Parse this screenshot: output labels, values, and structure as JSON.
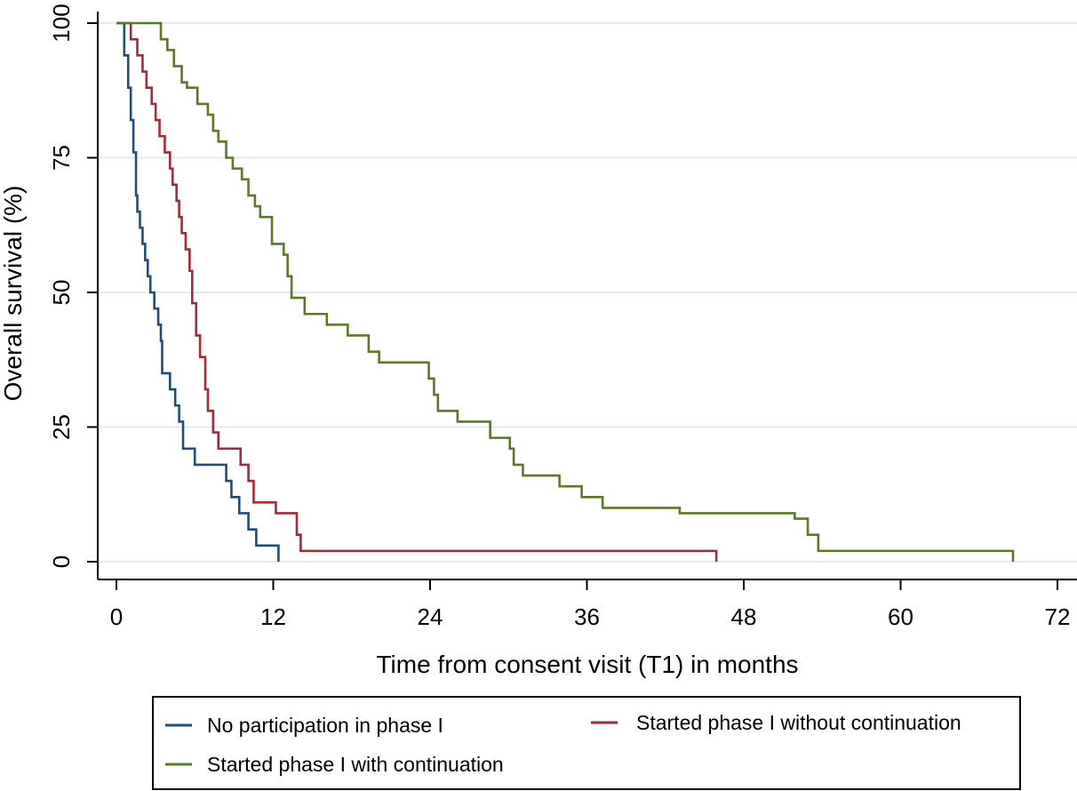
{
  "chart_data": {
    "type": "line",
    "step": true,
    "xlabel": "Time from consent visit (T1) in months",
    "ylabel": "Overall survival (%)",
    "xlim": [
      0,
      72
    ],
    "ylim": [
      0,
      100
    ],
    "xticks": [
      0,
      12,
      24,
      36,
      48,
      60,
      72
    ],
    "yticks": [
      0,
      25,
      50,
      75,
      100
    ],
    "grid": "horizontal",
    "legend_position": "bottom",
    "series": [
      {
        "name": "No participation in phase I",
        "color": "#1f4e79",
        "x": [
          0,
          0.6,
          0.9,
          1.1,
          1.3,
          1.5,
          1.6,
          1.8,
          2.0,
          2.2,
          2.4,
          2.6,
          2.9,
          3.2,
          3.4,
          3.5,
          4.1,
          4.5,
          4.8,
          5.1,
          6.0,
          8.4,
          8.8,
          9.4,
          10.1,
          10.7,
          12.4
        ],
        "y": [
          100,
          94,
          88,
          82,
          76,
          68,
          65,
          62,
          59,
          56,
          53,
          50,
          47,
          44,
          41,
          35,
          32,
          29,
          26,
          21,
          18,
          15,
          12,
          9,
          6,
          3,
          0
        ]
      },
      {
        "name": "Started phase I without continuation",
        "color": "#a12b38",
        "x": [
          0,
          1.1,
          1.6,
          2.0,
          2.3,
          2.7,
          3.0,
          3.3,
          3.7,
          4.1,
          4.3,
          4.6,
          4.8,
          5.0,
          5.3,
          5.6,
          5.8,
          6.1,
          6.4,
          6.8,
          7.0,
          7.4,
          7.8,
          9.5,
          10.1,
          10.5,
          12.2,
          13.8,
          14.1,
          45.9
        ],
        "y": [
          100,
          97,
          94,
          91,
          88,
          85,
          82,
          79,
          76,
          73,
          70,
          67,
          64,
          61,
          58,
          54,
          48,
          42,
          38,
          32,
          28,
          24,
          21,
          18,
          15,
          11,
          9,
          5,
          2,
          0
        ]
      },
      {
        "name": "Started phase I with continuation",
        "color": "#5b7a26",
        "x": [
          0,
          3.4,
          3.9,
          4.4,
          5.0,
          5.4,
          6.2,
          7.0,
          7.4,
          7.8,
          8.4,
          8.9,
          9.6,
          10.1,
          10.6,
          11.0,
          11.9,
          12.8,
          13.1,
          13.4,
          14.4,
          16.1,
          17.7,
          19.3,
          20.1,
          23.9,
          24.3,
          24.6,
          26.1,
          28.6,
          30.1,
          30.4,
          31.1,
          33.9,
          35.6,
          37.2,
          43.1,
          51.9,
          52.9,
          53.7,
          68.6
        ],
        "y": [
          100,
          97,
          95,
          92,
          89,
          88,
          85,
          83,
          80,
          78,
          75,
          73,
          71,
          68,
          66,
          64,
          59,
          57,
          53,
          49,
          46,
          44,
          42,
          39,
          37,
          34,
          31,
          28,
          26,
          23,
          21,
          18,
          16,
          14,
          12,
          10,
          9,
          8,
          5,
          2,
          0
        ]
      }
    ]
  }
}
